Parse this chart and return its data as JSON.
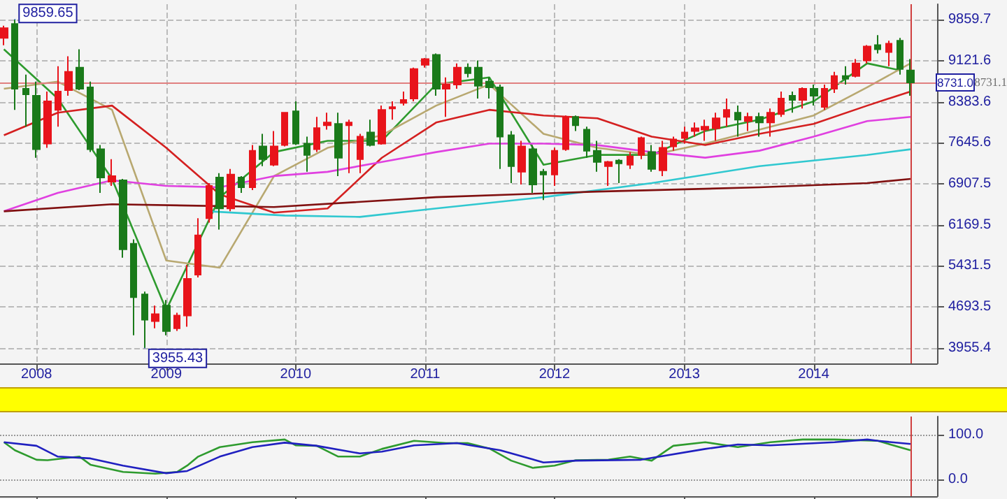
{
  "chart_data": [
    {
      "type": "candlestick",
      "x": [
        "2007-10",
        "2007-11",
        "2007-12",
        "2008-01",
        "2008-02",
        "2008-03",
        "2008-04",
        "2008-05",
        "2008-06",
        "2008-07",
        "2008-08",
        "2008-09",
        "2008-10",
        "2008-11",
        "2008-12",
        "2009-01",
        "2009-02",
        "2009-03",
        "2009-04",
        "2009-05",
        "2009-06",
        "2009-07",
        "2009-08",
        "2009-09",
        "2009-10",
        "2009-11",
        "2009-12",
        "2010-01",
        "2010-02",
        "2010-03",
        "2010-04",
        "2010-05",
        "2010-06",
        "2010-07",
        "2010-08",
        "2010-09",
        "2010-10",
        "2010-11",
        "2010-12",
        "2011-01",
        "2011-02",
        "2011-03",
        "2011-04",
        "2011-05",
        "2011-06",
        "2011-07",
        "2011-08",
        "2011-09",
        "2011-10",
        "2011-11",
        "2011-12",
        "2012-01",
        "2012-02",
        "2012-03",
        "2012-04",
        "2012-05",
        "2012-06",
        "2012-07",
        "2012-08",
        "2012-09",
        "2012-10",
        "2012-11",
        "2012-12",
        "2013-01",
        "2013-02",
        "2013-03",
        "2013-04",
        "2013-05",
        "2013-06",
        "2013-07",
        "2013-08",
        "2013-09",
        "2013-10",
        "2013-11",
        "2013-12",
        "2014-01",
        "2014-02",
        "2014-03",
        "2014-04",
        "2014-05",
        "2014-06",
        "2014-07",
        "2014-08",
        "2014-09",
        "2014-10"
      ],
      "ohlc": [
        [
          9530,
          9750,
          9400,
          9707
        ],
        [
          9784,
          9859.65,
          8238,
          8618
        ],
        [
          8618,
          8871,
          7934,
          8517
        ],
        [
          8492,
          8745,
          7376,
          7529
        ],
        [
          7630,
          8567,
          7554,
          8390
        ],
        [
          8238,
          9023,
          7934,
          8568
        ],
        [
          8593,
          9201,
          8491,
          8922
        ],
        [
          8998,
          9328,
          8593,
          8618
        ],
        [
          8643,
          8745,
          7478,
          7529
        ],
        [
          7529,
          7604,
          6743,
          7022
        ],
        [
          6945,
          7351,
          6869,
          7047
        ],
        [
          6971,
          6996,
          5577,
          5729
        ],
        [
          5830,
          5907,
          4184,
          4868
        ],
        [
          4918,
          4969,
          3955.43,
          4462
        ],
        [
          4437,
          4716,
          4310,
          4563
        ],
        [
          4716,
          4817,
          4184,
          4259
        ],
        [
          4310,
          4589,
          4260,
          4538
        ],
        [
          4538,
          5450,
          4336,
          5197
        ],
        [
          5273,
          6287,
          5222,
          5982
        ],
        [
          6287,
          6920,
          6211,
          6869
        ],
        [
          7022,
          7098,
          6084,
          6464
        ],
        [
          6464,
          7174,
          6413,
          7073
        ],
        [
          7022,
          7047,
          6743,
          6844
        ],
        [
          6844,
          7604,
          6793,
          7503
        ],
        [
          7579,
          7807,
          7224,
          7351
        ],
        [
          7250,
          7858,
          7224,
          7579
        ],
        [
          7604,
          8187,
          7580,
          8187
        ],
        [
          8212,
          8390,
          7604,
          7630
        ],
        [
          7630,
          7757,
          7123,
          7427
        ],
        [
          7529,
          8111,
          7478,
          7909
        ],
        [
          7959,
          8187,
          7883,
          8010
        ],
        [
          7985,
          8187,
          7047,
          7376
        ],
        [
          7959,
          8061,
          7098,
          8010
        ],
        [
          7351,
          7807,
          7098,
          7756
        ],
        [
          7832,
          8061,
          7580,
          7604
        ],
        [
          7630,
          8314,
          7610,
          8238
        ],
        [
          8263,
          8390,
          8061,
          8288
        ],
        [
          8364,
          8567,
          8314,
          8415
        ],
        [
          8441,
          8998,
          8390,
          8973
        ],
        [
          9049,
          9170,
          8998,
          9150
        ],
        [
          9226,
          9252,
          8491,
          8618
        ],
        [
          8618,
          8821,
          8111,
          8694
        ],
        [
          8694,
          9074,
          8618,
          8998
        ],
        [
          8998,
          9074,
          8821,
          8897
        ],
        [
          8998,
          9125,
          8441,
          8669
        ],
        [
          8745,
          8821,
          8441,
          8643
        ],
        [
          8643,
          8694,
          7174,
          7756
        ],
        [
          7782,
          7858,
          6920,
          7224
        ],
        [
          7123,
          7680,
          6895,
          7579
        ],
        [
          7529,
          7604,
          6743,
          6895
        ],
        [
          7123,
          7174,
          6616,
          7073
        ],
        [
          7073,
          7554,
          6869,
          7503
        ],
        [
          7529,
          8137,
          7503,
          8111
        ],
        [
          8111,
          8137,
          7858,
          7959
        ],
        [
          7883,
          7934,
          7376,
          7503
        ],
        [
          7503,
          7680,
          7123,
          7300
        ],
        [
          7224,
          7320,
          6869,
          7300
        ],
        [
          7325,
          7351,
          6920,
          7275
        ],
        [
          7250,
          7478,
          7174,
          7402
        ],
        [
          7427,
          7757,
          7351,
          7731
        ],
        [
          7478,
          7604,
          7123,
          7174
        ],
        [
          7148,
          7680,
          7047,
          7554
        ],
        [
          7579,
          7757,
          7503,
          7706
        ],
        [
          7731,
          7934,
          7630,
          7832
        ],
        [
          7857,
          8010,
          7757,
          7908
        ],
        [
          7883,
          8061,
          7680,
          7934
        ],
        [
          7908,
          8187,
          7680,
          8086
        ],
        [
          8111,
          8441,
          7934,
          8238
        ],
        [
          8187,
          8314,
          7757,
          8061
        ],
        [
          8035,
          8187,
          7858,
          8111
        ],
        [
          8111,
          8187,
          7757,
          8010
        ],
        [
          8010,
          8263,
          7757,
          8187
        ],
        [
          8162,
          8567,
          8111,
          8441
        ],
        [
          8492,
          8567,
          8187,
          8415
        ],
        [
          8415,
          8643,
          8263,
          8618
        ],
        [
          8618,
          8694,
          8314,
          8492
        ],
        [
          8289,
          8694,
          8238,
          8618
        ],
        [
          8618,
          8922,
          8542,
          8846
        ],
        [
          8846,
          9023,
          8694,
          8795
        ],
        [
          8846,
          9150,
          8821,
          9074
        ],
        [
          9125,
          9404,
          9074,
          9378
        ],
        [
          9404,
          9581,
          9252,
          9328
        ],
        [
          9277,
          9480,
          9023,
          9429
        ],
        [
          9480,
          9530,
          8871,
          8973
        ],
        [
          8947,
          9150,
          8491,
          8731
        ]
      ],
      "colors": [
        "#e8141b",
        "#1a7a1a",
        "#1a7a1a",
        "#1a7a1a",
        "#e8141b",
        "#e8141b",
        "#e8141b",
        "#1a7a1a",
        "#1a7a1a",
        "#1a7a1a",
        "#e8141b",
        "#1a7a1a",
        "#1a7a1a",
        "#1a7a1a",
        "#e8141b",
        "#1a7a1a",
        "#e8141b",
        "#e8141b",
        "#e8141b",
        "#e8141b",
        "#1a7a1a",
        "#e8141b",
        "#1a7a1a",
        "#e8141b",
        "#1a7a1a",
        "#e8141b",
        "#e8141b",
        "#1a7a1a",
        "#1a7a1a",
        "#e8141b",
        "#e8141b",
        "#1a7a1a",
        "#e8141b",
        "#e8141b",
        "#1a7a1a",
        "#e8141b",
        "#e8141b",
        "#e8141b",
        "#e8141b",
        "#e8141b",
        "#1a7a1a",
        "#e8141b",
        "#e8141b",
        "#1a7a1a",
        "#1a7a1a",
        "#1a7a1a",
        "#1a7a1a",
        "#1a7a1a",
        "#e8141b",
        "#1a7a1a",
        "#1a7a1a",
        "#e8141b",
        "#e8141b",
        "#1a7a1a",
        "#1a7a1a",
        "#1a7a1a",
        "#e8141b",
        "#1a7a1a",
        "#e8141b",
        "#e8141b",
        "#1a7a1a",
        "#e8141b",
        "#e8141b",
        "#e8141b",
        "#e8141b",
        "#e8141b",
        "#e8141b",
        "#e8141b",
        "#1a7a1a",
        "#e8141b",
        "#1a7a1a",
        "#e8141b",
        "#e8141b",
        "#1a7a1a",
        "#e8141b",
        "#1a7a1a",
        "#e8141b",
        "#e8141b",
        "#1a7a1a",
        "#e8141b",
        "#e8141b",
        "#1a7a1a",
        "#e8141b",
        "#1a7a1a",
        "#1a7a1a"
      ],
      "series": [
        {
          "type": "line",
          "color": "#2e9b2e",
          "x": [
            "2007-10",
            "2008-03",
            "2008-08",
            "2009-01",
            "2009-06",
            "2009-11",
            "2010-04",
            "2010-09",
            "2011-02",
            "2011-07",
            "2011-12",
            "2012-05",
            "2012-10",
            "2013-03",
            "2013-08",
            "2014-01",
            "2014-06",
            "2014-09"
          ],
          "values": [
            9328,
            8441,
            6996,
            4640,
            6667,
            7478,
            7681,
            7681,
            8694,
            8821,
            7250,
            7427,
            7427,
            7858,
            8061,
            8390,
            9074,
            8950
          ]
        },
        {
          "type": "line",
          "color": "#b8a870",
          "x": [
            "2007-10",
            "2008-03",
            "2008-08",
            "2009-01",
            "2009-06",
            "2009-11",
            "2010-04",
            "2010-09",
            "2011-02",
            "2011-07",
            "2011-12",
            "2012-05",
            "2012-10",
            "2013-03",
            "2013-08",
            "2014-01",
            "2014-06",
            "2014-10"
          ],
          "values": [
            8618,
            8745,
            8238,
            5527,
            5400,
            7047,
            7554,
            7782,
            8314,
            8694,
            7807,
            7554,
            7427,
            7630,
            7883,
            8137,
            8643,
            9074
          ]
        },
        {
          "type": "line",
          "color": "#d42020",
          "x": [
            "2007-10",
            "2008-03",
            "2008-08",
            "2009-01",
            "2009-06",
            "2009-11",
            "2010-04",
            "2010-09",
            "2011-02",
            "2011-07",
            "2011-12",
            "2012-05",
            "2012-10",
            "2013-03",
            "2013-08",
            "2014-01",
            "2014-06",
            "2014-10"
          ],
          "values": [
            7782,
            8187,
            8314,
            7554,
            6717,
            6388,
            6464,
            7376,
            8010,
            8238,
            8137,
            8086,
            7757,
            7604,
            7807,
            7985,
            8314,
            8567
          ]
        },
        {
          "type": "line",
          "color": "#e040e0",
          "x": [
            "2007-10",
            "2008-03",
            "2008-08",
            "2009-01",
            "2009-06",
            "2009-11",
            "2010-04",
            "2010-09",
            "2011-02",
            "2011-07",
            "2011-12",
            "2012-05",
            "2012-10",
            "2013-03",
            "2013-08",
            "2014-01",
            "2014-06",
            "2014-10"
          ],
          "values": [
            6413,
            6743,
            6971,
            6870,
            6844,
            7047,
            7123,
            7300,
            7478,
            7630,
            7630,
            7604,
            7478,
            7377,
            7503,
            7757,
            8035,
            8111
          ]
        },
        {
          "type": "line",
          "color": "#30c8d0",
          "x": [
            "2009-05",
            "2009-12",
            "2010-07",
            "2011-02",
            "2011-12",
            "2012-10",
            "2013-08",
            "2014-06",
            "2014-10"
          ],
          "values": [
            6413,
            6337,
            6312,
            6464,
            6667,
            6920,
            7224,
            7427,
            7528
          ]
        },
        {
          "type": "line",
          "color": "#801010",
          "x": [
            "2007-10",
            "2008-08",
            "2009-11",
            "2011-02",
            "2012-05",
            "2013-08",
            "2014-06",
            "2014-10"
          ],
          "values": [
            6413,
            6540,
            6489,
            6667,
            6768,
            6844,
            6920,
            6996
          ]
        }
      ],
      "xlim": [
        "2007-09-20",
        "2014-12-15"
      ],
      "xticks": [
        "2008",
        "2009",
        "2010",
        "2011",
        "2012",
        "2013",
        "2014"
      ],
      "ylim": [
        3677,
        10138
      ],
      "yticks": [
        9859.7,
        9121.6,
        8383.6,
        7645.6,
        6907.5,
        6169.5,
        5431.5,
        4693.5,
        3955.4
      ],
      "ref_lines": [
        {
          "axis": "y",
          "value": 8731,
          "label": "8731.0",
          "color": "#e08080"
        },
        {
          "axis": "x",
          "value": "2014-10",
          "color": "#d04040"
        }
      ],
      "annotations": [
        {
          "text": "9859.65",
          "x": "2007-11",
          "y": 9859.65
        },
        {
          "text": "3955.43",
          "x": "2008-11",
          "y": 3955.43
        },
        "8731.1"
      ],
      "grid": true,
      "marker": "none"
    },
    {
      "type": "line",
      "series": [
        {
          "color": "#2e9b2e",
          "x": [
            "2007-10",
            "2007-11",
            "2008-01",
            "2008-02",
            "2008-05",
            "2008-06",
            "2008-09",
            "2008-12",
            "2009-02",
            "2009-03",
            "2009-04",
            "2009-06",
            "2009-09",
            "2009-12",
            "2010-01",
            "2010-03",
            "2010-05",
            "2010-07",
            "2010-09",
            "2010-12",
            "2011-03",
            "2011-05",
            "2011-07",
            "2011-09",
            "2011-11",
            "2012-01",
            "2012-03",
            "2012-06",
            "2012-08",
            "2012-10",
            "2012-12",
            "2013-03",
            "2013-06",
            "2013-09",
            "2013-12",
            "2014-03",
            "2014-07",
            "2014-10"
          ],
          "values": [
            83,
            65,
            44,
            43,
            51,
            33,
            17,
            13,
            17,
            31,
            51,
            72,
            83,
            89,
            76,
            75,
            51,
            51,
            68,
            86,
            81,
            81,
            69,
            42,
            26,
            31,
            43,
            44,
            51,
            42,
            75,
            83,
            72,
            83,
            89,
            89,
            86,
            65
          ]
        },
        {
          "color": "#2020c0",
          "x": [
            "2007-10",
            "2008-01",
            "2008-03",
            "2008-06",
            "2008-09",
            "2009-01",
            "2009-03",
            "2009-06",
            "2009-09",
            "2009-12",
            "2010-03",
            "2010-07",
            "2010-09",
            "2010-12",
            "2011-04",
            "2011-08",
            "2011-12",
            "2012-03",
            "2012-09",
            "2013-03",
            "2013-06",
            "2013-09",
            "2014-03",
            "2014-06",
            "2014-07",
            "2014-10"
          ],
          "values": [
            83,
            75,
            51,
            47,
            31,
            14,
            19,
            51,
            72,
            82,
            75,
            58,
            62,
            76,
            81,
            65,
            38,
            42,
            44,
            68,
            78,
            76,
            83,
            89,
            86,
            79
          ]
        }
      ],
      "xlim": [
        "2007-09-20",
        "2014-12-15"
      ],
      "ylim": [
        -37,
        140
      ],
      "yticks": [
        {
          "value": 100,
          "label": "100.0"
        },
        {
          "value": 0,
          "label": "0.0"
        }
      ],
      "xticks": [
        "2008",
        "2009",
        "2010",
        "2011",
        "2012",
        "2013",
        "2014"
      ],
      "ref_lines": [
        {
          "axis": "x",
          "value": "2014-10",
          "color": "#d04040"
        },
        {
          "axis": "y",
          "value": 100,
          "color": "#999999",
          "line_style": "dotted"
        },
        {
          "axis": "y",
          "value": 0,
          "color": "#999999",
          "line_style": "dotted"
        }
      ],
      "tick_labels": "y",
      "marker": "none"
    }
  ]
}
